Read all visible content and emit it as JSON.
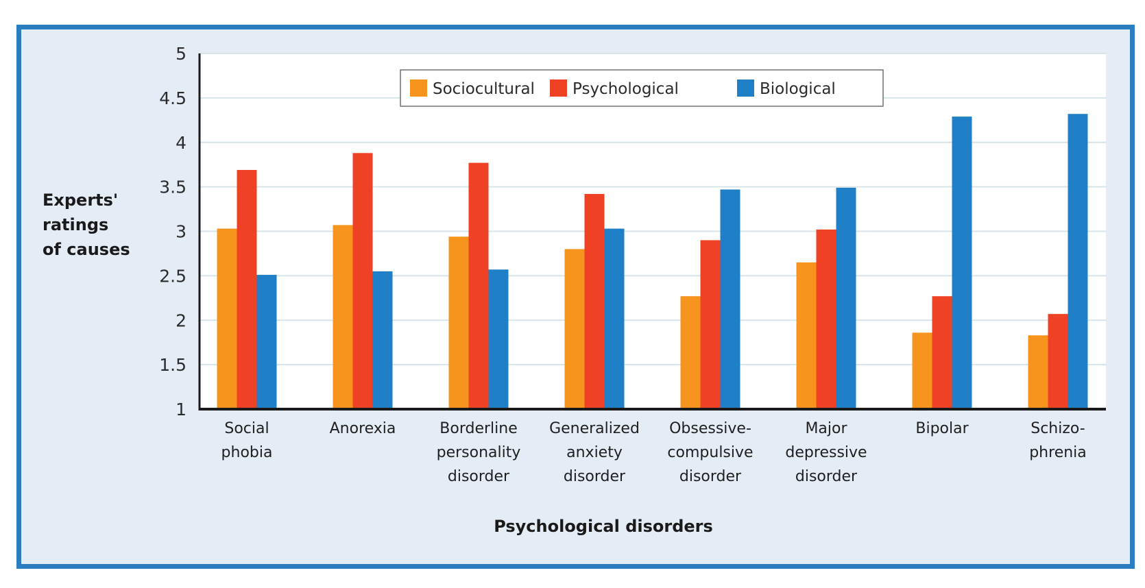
{
  "chart_data": {
    "type": "bar",
    "title": "",
    "xlabel": "Psychological disorders",
    "ylabel": [
      "Experts'",
      "ratings",
      "of causes"
    ],
    "ylim": [
      1,
      5
    ],
    "yticks": [
      1,
      1.5,
      2,
      2.5,
      3,
      3.5,
      4,
      4.5,
      5
    ],
    "ytick_labels": [
      "1",
      "1.5",
      "2",
      "2.5",
      "3",
      "3.5",
      "4",
      "4.5",
      "5"
    ],
    "grid": true,
    "legend_position": "top-center",
    "categories": [
      [
        "Social",
        "phobia"
      ],
      [
        "Anorexia"
      ],
      [
        "Borderline",
        "personality",
        "disorder"
      ],
      [
        "Generalized",
        "anxiety",
        "disorder"
      ],
      [
        "Obsessive-",
        "compulsive",
        "disorder"
      ],
      [
        "Major",
        "depressive",
        "disorder"
      ],
      [
        "Bipolar"
      ],
      [
        "Schizo-",
        "phrenia"
      ]
    ],
    "series": [
      {
        "name": "Sociocultural",
        "color": "#f7941d",
        "values": [
          3.03,
          3.07,
          2.94,
          2.8,
          2.27,
          2.65,
          1.86,
          1.83
        ]
      },
      {
        "name": "Psychological",
        "color": "#ef4123",
        "values": [
          3.69,
          3.88,
          3.77,
          3.42,
          2.9,
          3.02,
          2.27,
          2.07
        ]
      },
      {
        "name": "Biological",
        "color": "#1f80c8",
        "values": [
          2.51,
          2.55,
          2.57,
          3.03,
          3.47,
          3.49,
          4.29,
          4.32
        ]
      }
    ]
  },
  "colors": {
    "frame_border": "#2a7dc0",
    "frame_background": "#e4ecf5",
    "plot_background": "#ffffff",
    "gridline": "#d6e4ea",
    "axis": "#1a1a1a"
  }
}
